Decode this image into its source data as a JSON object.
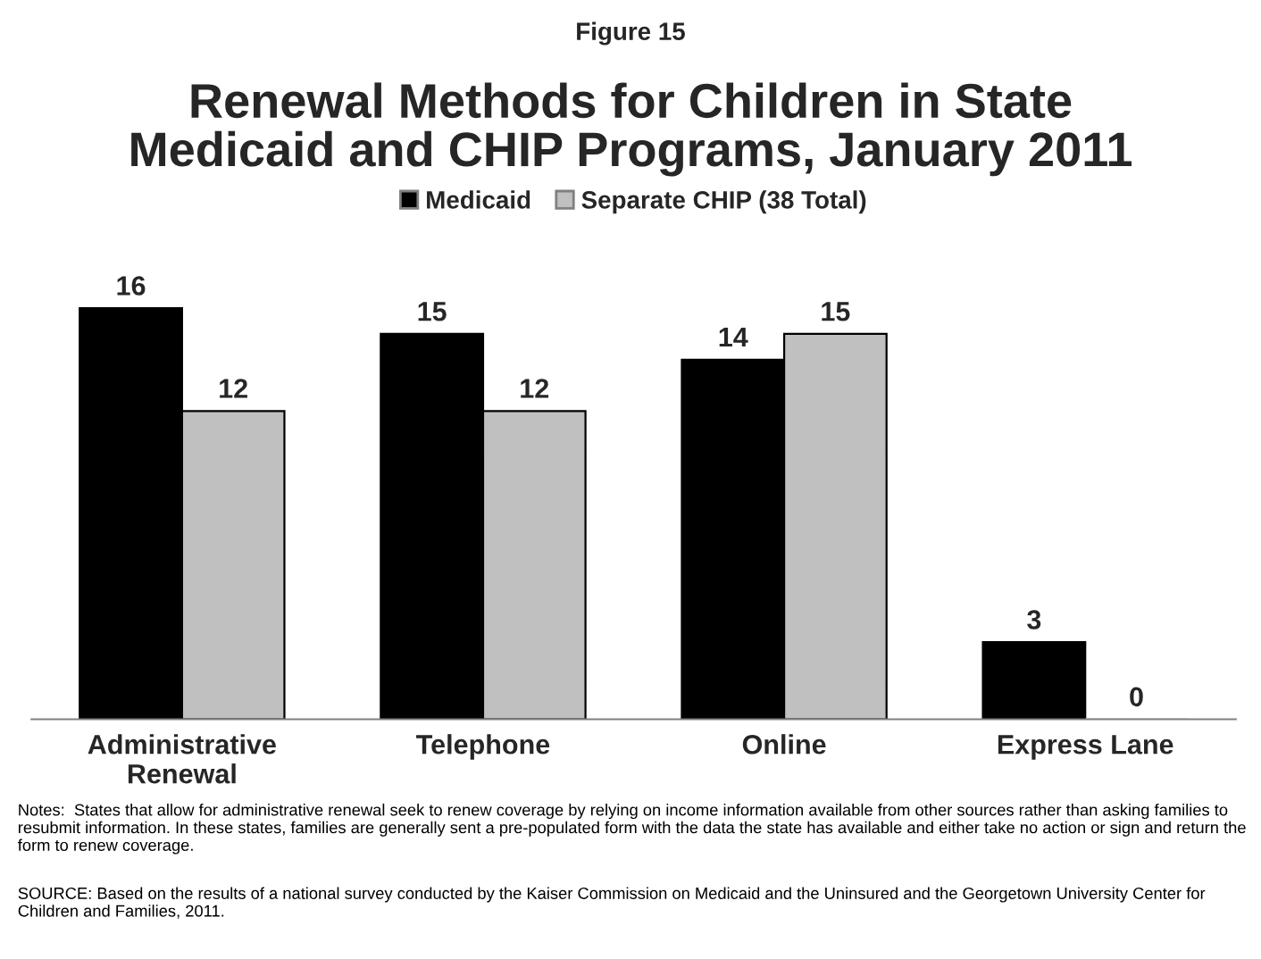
{
  "chart_data": {
    "type": "bar",
    "subtitle": "Figure 15",
    "title": "Renewal Methods for Children in State\nMedicaid and CHIP Programs, January 2011",
    "categories": [
      "Administrative\nRenewal",
      "Telephone",
      "Online",
      "Express Lane"
    ],
    "series": [
      {
        "name": "Medicaid",
        "color": "#000000",
        "values": [
          16,
          15,
          14,
          3
        ]
      },
      {
        "name": "Separate CHIP (38 Total)",
        "color": "#c0c0c0",
        "values": [
          12,
          12,
          15,
          0
        ]
      }
    ],
    "data_labels": true,
    "legend": "top",
    "grid": false,
    "tick_labels": "x",
    "annotations": [
      "Notes:  States that allow for administrative renewal seek to renew coverage by relying on income information available from other sources rather than asking families to resubmit information. In these states, families are generally sent a pre-populated form with the data the state has available and either take no action or sign and return the form to renew coverage.",
      "SOURCE: Based on the results of a national survey conducted by the Kaiser Commission on Medicaid and the Uninsured and the Georgetown University Center for Children and Families, 2011."
    ]
  }
}
